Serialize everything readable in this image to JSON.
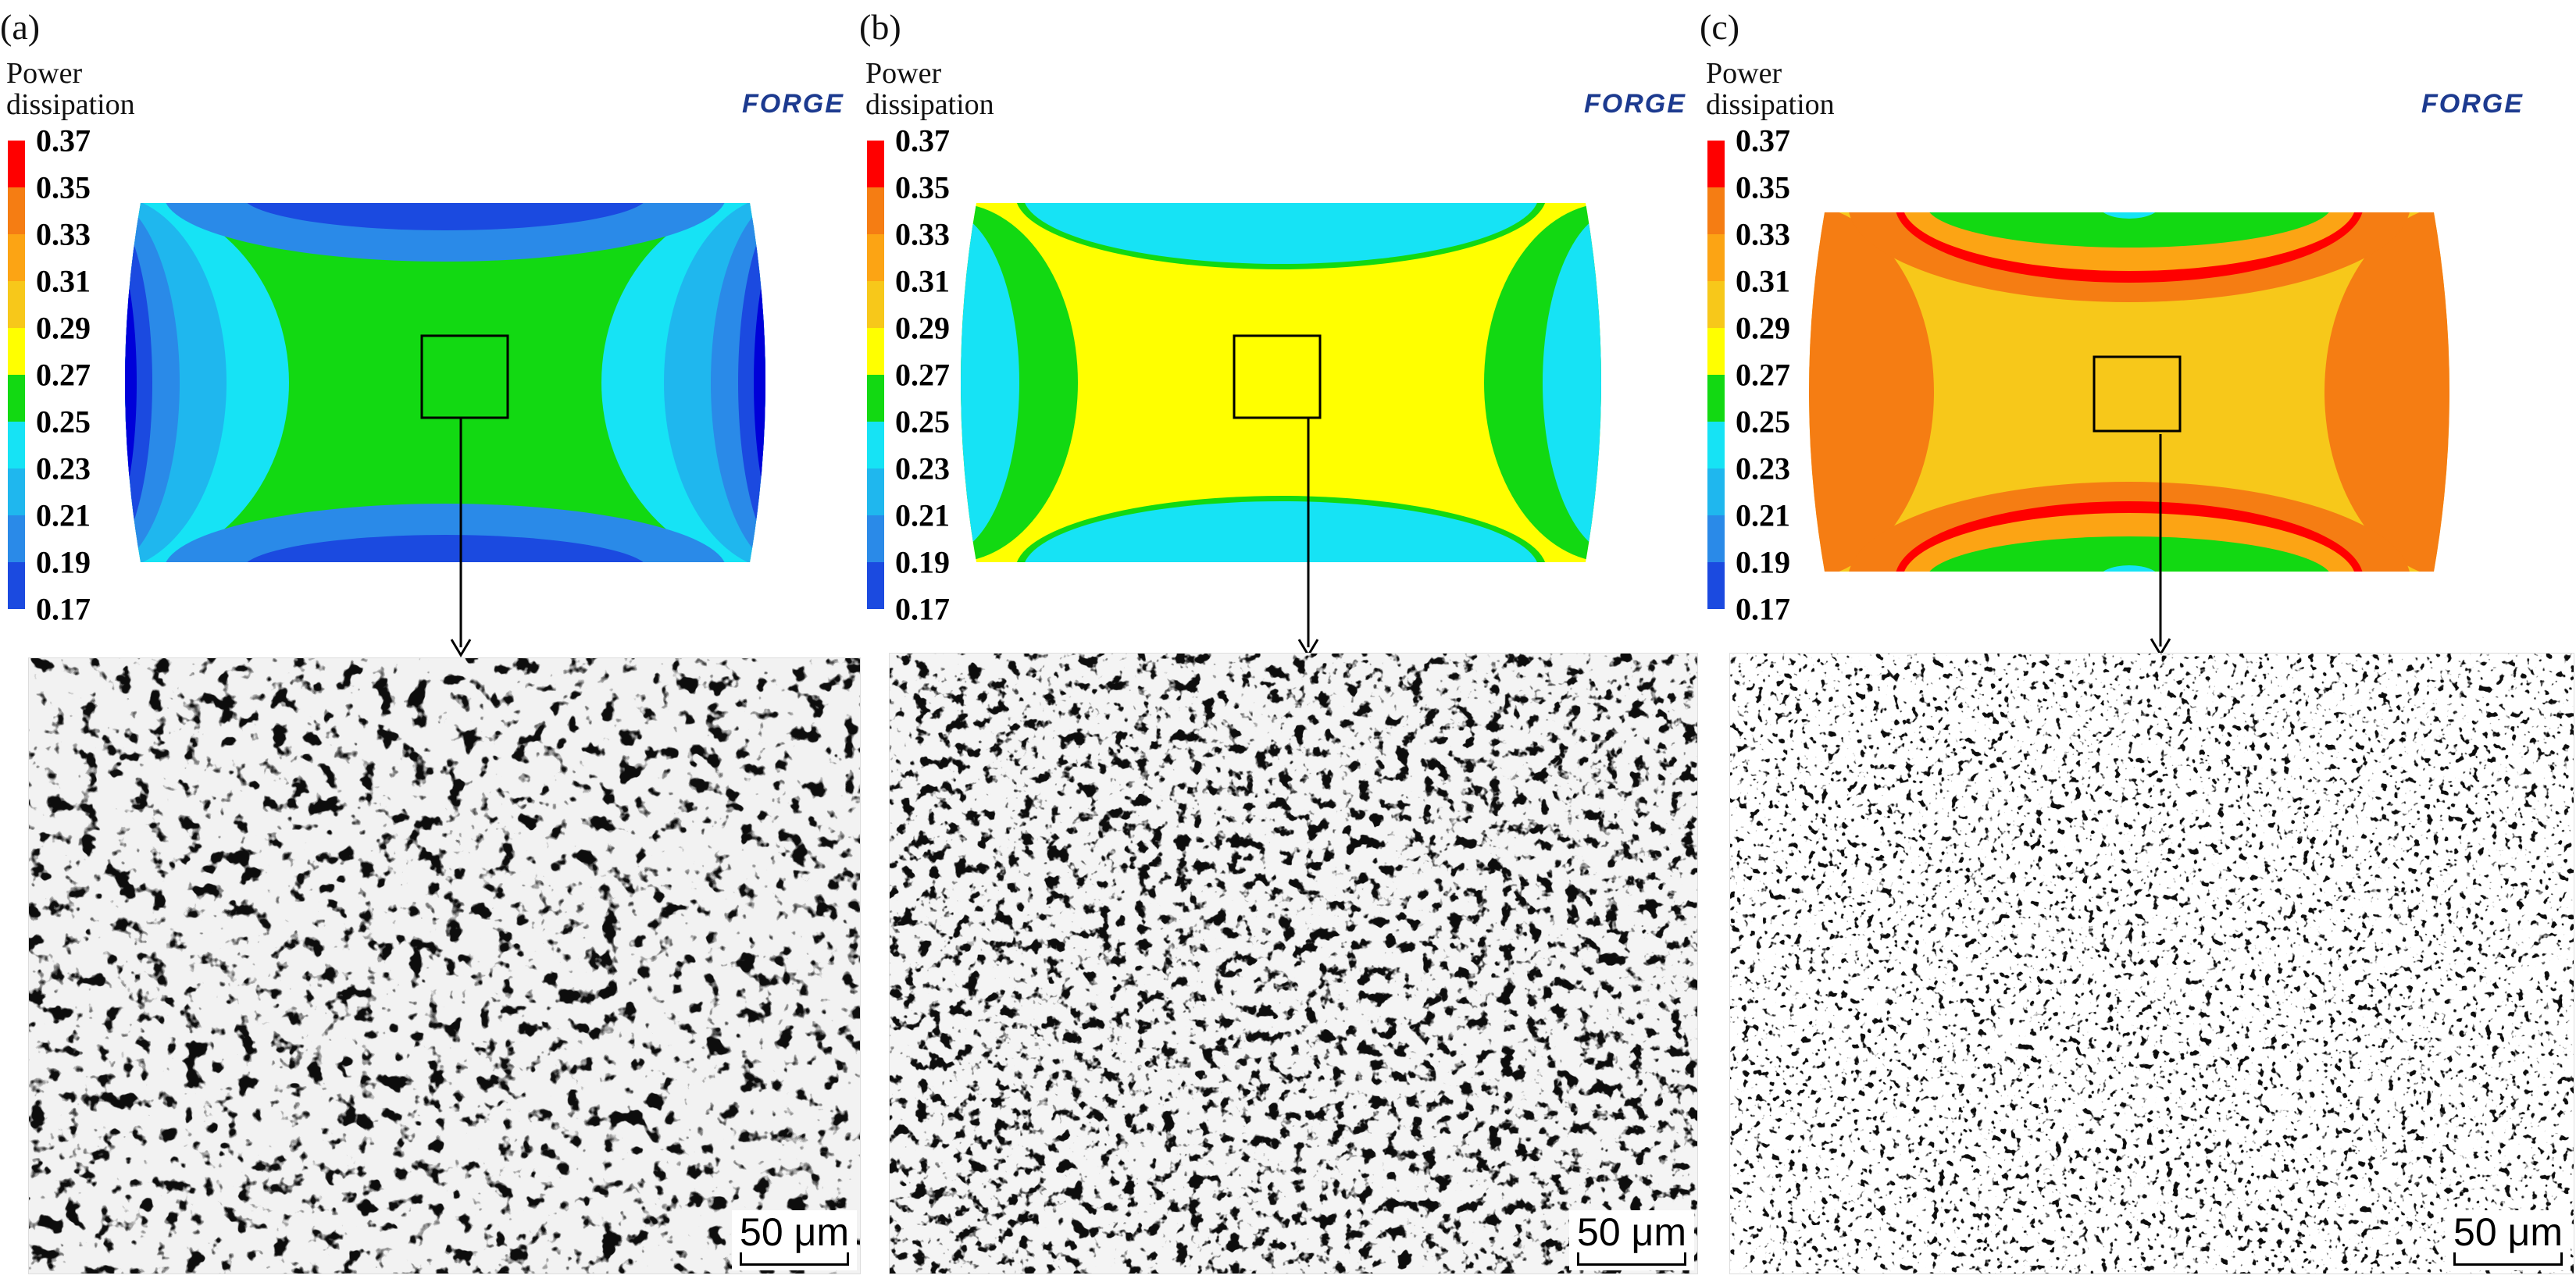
{
  "figure": {
    "legend_title_line1": "Power",
    "legend_title_line2": "dissipation",
    "legend_ticks": [
      "0.37",
      "0.35",
      "0.33",
      "0.31",
      "0.29",
      "0.27",
      "0.25",
      "0.23",
      "0.21",
      "0.19",
      "0.17"
    ],
    "legend_colors": [
      "#ff0000",
      "#f57d13",
      "#fca414",
      "#f7c81a",
      "#ffff00",
      "#12d912",
      "#16e3f5",
      "#1fb7ee",
      "#2a8ae8",
      "#1b4ae0",
      "#0000d9"
    ],
    "logo_text": "FORGE",
    "scale_text": "50 μm"
  },
  "panels": [
    {
      "label": "(a)",
      "colors": {
        "outer": "#0000d9",
        "mid": "#1b4ae0",
        "c3": "#2a8ae8",
        "c4": "#1fb7ee",
        "c5": "#16e3f5",
        "center": "#12d912"
      }
    },
    {
      "label": "(b)",
      "colors": {
        "outer": "#1fb7ee",
        "c5": "#16e3f5",
        "mid": "#12d912",
        "center": "#ffff00"
      }
    },
    {
      "label": "(c)",
      "colors": {
        "outer": "#f57d13",
        "red": "#ff0000",
        "cool": "#12d912",
        "center": "#f7c81a",
        "band": "#fca414",
        "cyan": "#16e3f5"
      }
    }
  ]
}
